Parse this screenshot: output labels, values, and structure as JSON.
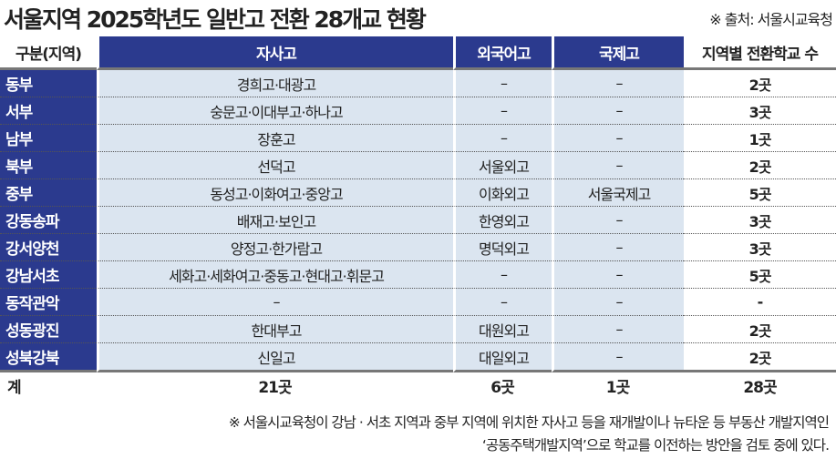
{
  "title": "서울지역 2025학년도 일반고 전환 28개교 현황",
  "source": "※ 출처: 서울시교육청",
  "colors": {
    "header_bg": "#2b3a8e",
    "cell_bg": "#dbe5f0"
  },
  "headers": [
    "구분(지역)",
    "자사고",
    "외국어고",
    "국제고",
    "지역별 전환학교 수"
  ],
  "rows": [
    [
      "동부",
      "경희고·대광고",
      "–",
      "–",
      "2곳"
    ],
    [
      "서부",
      "숭문고·이대부고·하나고",
      "–",
      "–",
      "3곳"
    ],
    [
      "남부",
      "장훈고",
      "–",
      "–",
      "1곳"
    ],
    [
      "북부",
      "선덕고",
      "서울외고",
      "–",
      "2곳"
    ],
    [
      "중부",
      "동성고·이화여고·중앙고",
      "이화외고",
      "서울국제고",
      "5곳"
    ],
    [
      "강동송파",
      "배재고·보인고",
      "한영외고",
      "–",
      "3곳"
    ],
    [
      "강서양천",
      "양정고·한가람고",
      "명덕외고",
      "–",
      "3곳"
    ],
    [
      "강남서초",
      "세화고·세화여고·중동고·현대고·휘문고",
      "–",
      "–",
      "5곳"
    ],
    [
      "동작관악",
      "–",
      "–",
      "–",
      "-"
    ],
    [
      "성동광진",
      "한대부고",
      "대원외고",
      "–",
      "2곳"
    ],
    [
      "성북강북",
      "신일고",
      "대일외고",
      "–",
      "2곳"
    ]
  ],
  "total": [
    "계",
    "21곳",
    "6곳",
    "1곳",
    "28곳"
  ],
  "note": [
    "※ 서울시교육청이 강남 · 서초 지역과 중부 지역에 위치한 자사고 등을 재개발이나 뉴타운 등 부동산 개발지역인",
    "‘공동주택개발지역’으로 학교를 이전하는 방안을 검토 중에 있다."
  ]
}
